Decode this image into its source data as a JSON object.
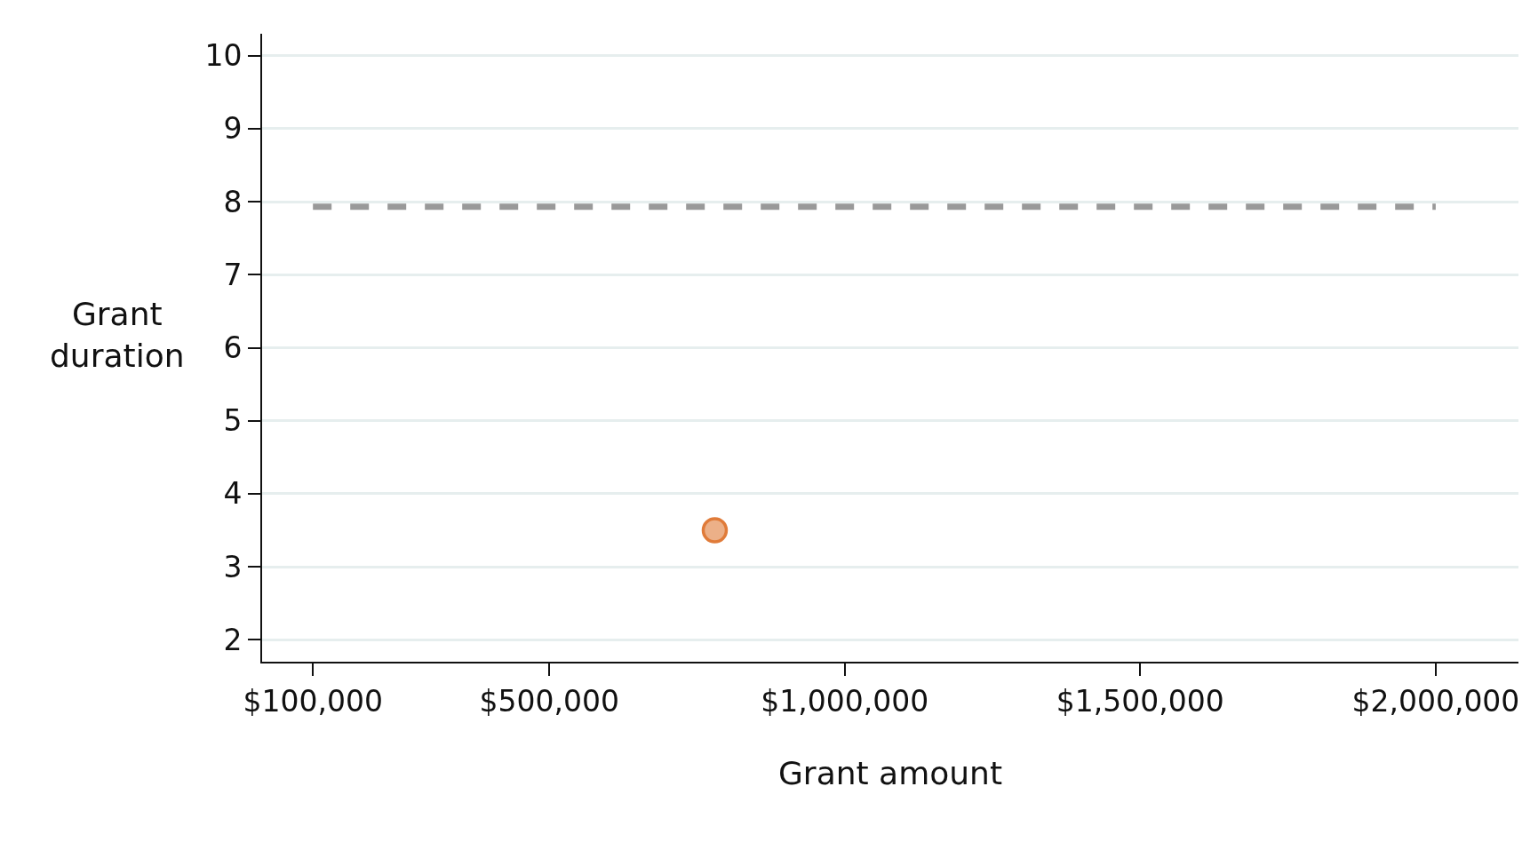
{
  "chart_data": {
    "type": "scatter",
    "xlabel": "Grant amount",
    "ylabel": "Grant duration",
    "xlim": [
      14000,
      2140000
    ],
    "xticks": [
      {
        "value": 100000,
        "label": "$100,000"
      },
      {
        "value": 500000,
        "label": "$500,000"
      },
      {
        "value": 1000000,
        "label": "$1,000,000"
      },
      {
        "value": 1500000,
        "label": "$1,500,000"
      },
      {
        "value": 2000000,
        "label": "$2,000,000"
      }
    ],
    "ylim": [
      1.7,
      10.3
    ],
    "yticks": [
      2,
      3,
      4,
      5,
      6,
      7,
      8,
      9,
      10
    ],
    "grid": "y",
    "series": [
      {
        "type": "line",
        "color": "#999999",
        "line_style": "dashed",
        "marker": "none",
        "x": [
          100000,
          2000000
        ],
        "values": [
          7.93,
          7.93
        ]
      },
      {
        "color": "#e07b39",
        "marker": "circle",
        "x": [
          780000
        ],
        "values": [
          3.5
        ]
      }
    ]
  }
}
